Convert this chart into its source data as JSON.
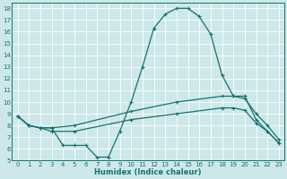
{
  "xlabel": "Humidex (Indice chaleur)",
  "xlim": [
    -0.5,
    23.5
  ],
  "ylim": [
    5,
    18.5
  ],
  "yticks": [
    5,
    6,
    7,
    8,
    9,
    10,
    11,
    12,
    13,
    14,
    15,
    16,
    17,
    18
  ],
  "xticks": [
    0,
    1,
    2,
    3,
    4,
    5,
    6,
    7,
    8,
    9,
    10,
    11,
    12,
    13,
    14,
    15,
    16,
    17,
    18,
    19,
    20,
    21,
    22,
    23
  ],
  "bg_color": "#cce8e8",
  "line_color": "#1a7070",
  "grid_color": "#b0d4d4",
  "line1_x": [
    0,
    1,
    2,
    3,
    4,
    5,
    6,
    7,
    8,
    9,
    10,
    11,
    12,
    13,
    14,
    15,
    16,
    17,
    18,
    19,
    20,
    21,
    22,
    23
  ],
  "line1_y": [
    8.8,
    8.0,
    7.8,
    7.8,
    6.3,
    6.3,
    6.3,
    5.3,
    5.3,
    7.5,
    10.0,
    13.0,
    16.3,
    17.5,
    18.0,
    18.0,
    17.3,
    15.8,
    12.3,
    10.5,
    10.5,
    8.5,
    7.5,
    6.5
  ],
  "line2_x": [
    0,
    1,
    2,
    3,
    5,
    10,
    14,
    18,
    19,
    20,
    21,
    22,
    23
  ],
  "line2_y": [
    8.8,
    8.0,
    7.8,
    7.8,
    8.0,
    9.2,
    10.0,
    10.5,
    10.5,
    10.3,
    9.0,
    8.0,
    6.8
  ],
  "line3_x": [
    0,
    1,
    2,
    3,
    5,
    10,
    14,
    18,
    19,
    20,
    21,
    22,
    23
  ],
  "line3_y": [
    8.8,
    8.0,
    7.8,
    7.5,
    7.5,
    8.5,
    9.0,
    9.5,
    9.5,
    9.3,
    8.2,
    7.5,
    6.5
  ]
}
